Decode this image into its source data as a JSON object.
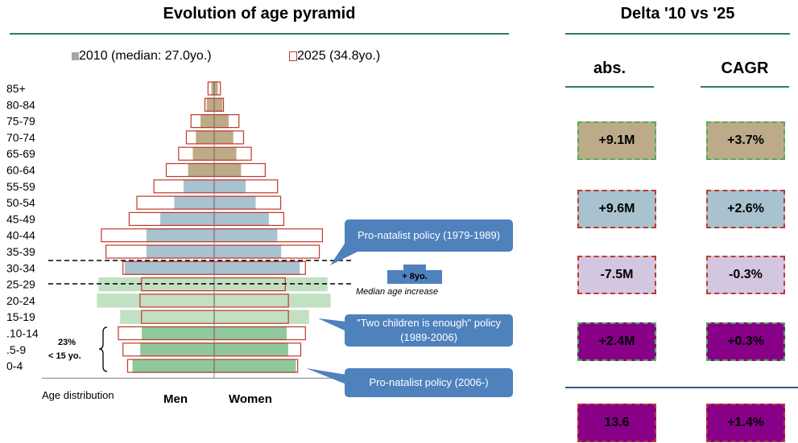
{
  "left_title": "Evolution of age pyramid",
  "right_title": "Delta '10 vs '25",
  "legend": {
    "series_2010": "2010 (median: 27.0yo.)",
    "series_2025": "2025 (34.8yo.)"
  },
  "axis": {
    "age_distribution_label": "Age distribution",
    "men_label": "Men",
    "women_label": "Women"
  },
  "bracket": {
    "share": "23%",
    "scope": "< 15 yo."
  },
  "median": {
    "shift": "+ 8yo.",
    "caption": "Median age increase"
  },
  "callouts": [
    "Pro-natalist policy (1979-1989)",
    "\"Two children is enough\" policy (1989-2006)",
    "Pro-natalist policy (2006-)"
  ],
  "delta": {
    "abs_header": "abs.",
    "cagr_header": "CAGR",
    "rows": [
      {
        "abs": "+9.1M",
        "cagr": "+3.7%",
        "fill": "#bcaa88",
        "border": "#4caf50"
      },
      {
        "abs": "+9.6M",
        "cagr": "+2.6%",
        "fill": "#a8c2d0",
        "border": "#c0392b"
      },
      {
        "abs": "-7.5M",
        "cagr": "-0.3%",
        "fill": "#d3c6e0",
        "border": "#c0392b"
      },
      {
        "abs": "+2.4M",
        "cagr": "+0.3%",
        "fill": "#880088",
        "border": "#4caf50"
      }
    ],
    "total": {
      "abs": "13.6",
      "cagr": "+1.4%",
      "fill": "#880088",
      "border": "#c0392b"
    }
  },
  "colors": {
    "accent_rule": "#2e7d5b",
    "age_85_60": "#bcaa88",
    "age_55_45": "#a8c2d0",
    "age_40_30": "#a8c2d0",
    "age_25_15": "#c2e0c2",
    "age_14_0": "#8fc89a",
    "outline_2025": "#c0392b",
    "callout": "#4f81bd"
  },
  "chart_data": {
    "type": "bar",
    "orientation": "horizontal-butterfly",
    "title": "Evolution of age pyramid",
    "categories": [
      "85+",
      "80-84",
      "75-79",
      "70-74",
      "65-69",
      "60-64",
      "55-59",
      "50-54",
      "45-49",
      "40-44",
      "35-39",
      "30-34",
      "25-29",
      "20-24",
      "15-19",
      ".10-14",
      ".5-9",
      "0-4"
    ],
    "xlabel": "Age distribution",
    "series": [
      {
        "name": "2010 (median: 27.0yo.)",
        "men": [
          0.4,
          1.0,
          1.8,
          2.4,
          2.8,
          3.4,
          4.0,
          5.2,
          7.0,
          8.8,
          8.8,
          11.6,
          15.0,
          15.2,
          12.2,
          9.4,
          9.6,
          10.6
        ],
        "women": [
          0.5,
          1.1,
          1.9,
          2.5,
          2.9,
          3.5,
          4.1,
          5.4,
          7.1,
          8.2,
          8.7,
          11.1,
          14.7,
          15.1,
          12.3,
          9.4,
          9.6,
          10.6
        ]
      },
      {
        "name": "2025 (34.8yo.)",
        "men": [
          0.8,
          1.2,
          3.0,
          3.6,
          4.6,
          6.2,
          7.8,
          10.0,
          11.0,
          14.6,
          14.0,
          11.8,
          9.4,
          9.6,
          9.4,
          12.4,
          11.8,
          11.2
        ],
        "women": [
          0.8,
          1.2,
          3.2,
          3.8,
          4.8,
          6.6,
          8.2,
          8.6,
          9.0,
          14.0,
          13.6,
          11.8,
          9.2,
          9.6,
          9.6,
          11.8,
          11.2,
          10.8
        ]
      }
    ]
  }
}
